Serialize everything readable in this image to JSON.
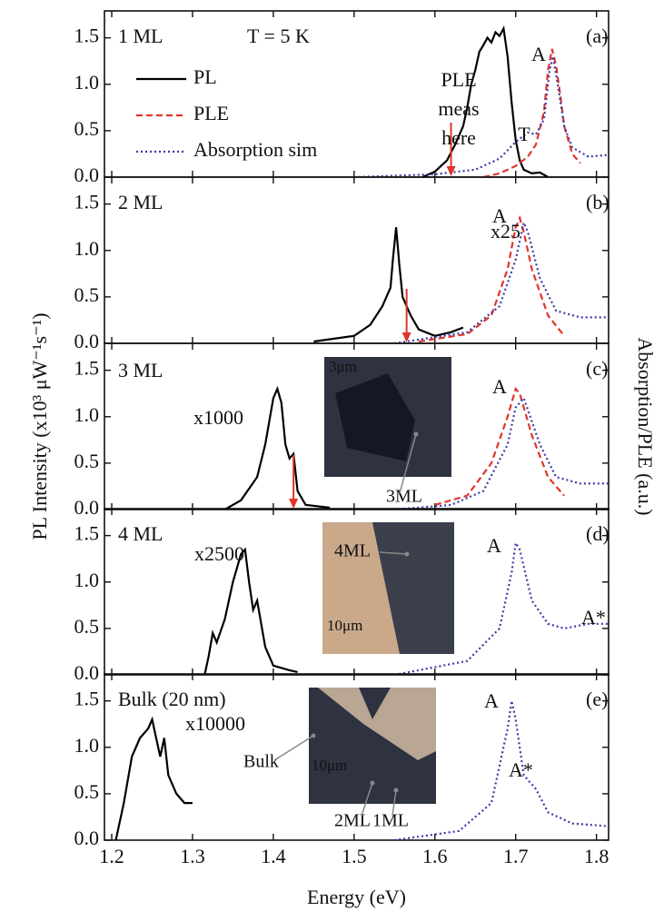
{
  "chart_data": [
    {
      "type": "line",
      "panel_label": "(a)",
      "xlim": [
        1.191,
        1.815
      ],
      "ylim": [
        0,
        1.79
      ],
      "xticks": [
        1.2,
        1.3,
        1.4,
        1.5,
        1.6,
        1.7,
        1.8
      ],
      "yticks": [
        {
          "value": 0,
          "label": "0.0"
        },
        {
          "value": 0.5,
          "label": "0.5"
        },
        {
          "value": 1,
          "label": "1.0"
        },
        {
          "value": 1.5,
          "label": "1.5"
        }
      ],
      "annotations": [
        "1 ML",
        "T = 5 K",
        "A",
        "T"
      ],
      "excitation_note": [
        "PLE",
        "meas",
        "here"
      ],
      "excitation_energy": 1.62,
      "series": [
        {
          "name": "PL",
          "color": "#000000",
          "style": "solid",
          "x": [
            1.585,
            1.6,
            1.615,
            1.625,
            1.635,
            1.64,
            1.645,
            1.65,
            1.655,
            1.66,
            1.665,
            1.67,
            1.675,
            1.68,
            1.685,
            1.69,
            1.695,
            1.7,
            1.705,
            1.71,
            1.72,
            1.73,
            1.74
          ],
          "values": [
            0,
            0.06,
            0.18,
            0.35,
            0.55,
            0.75,
            1.0,
            1.15,
            1.35,
            1.42,
            1.5,
            1.45,
            1.56,
            1.52,
            1.6,
            1.3,
            0.8,
            0.4,
            0.18,
            0.08,
            0.04,
            0.05,
            0
          ]
        },
        {
          "name": "PLE",
          "color": "#e0352b",
          "style": "dashed",
          "x": [
            1.66,
            1.68,
            1.7,
            1.715,
            1.725,
            1.735,
            1.74,
            1.745,
            1.75,
            1.755,
            1.76,
            1.77,
            1.78
          ],
          "values": [
            0.0,
            0.04,
            0.12,
            0.22,
            0.35,
            0.7,
            1.15,
            1.38,
            1.2,
            0.9,
            0.55,
            0.25,
            0.15
          ]
        },
        {
          "name": "Absorption sim",
          "color": "#3a3aa8",
          "style": "dotted",
          "x": [
            1.5,
            1.6,
            1.65,
            1.68,
            1.7,
            1.715,
            1.725,
            1.735,
            1.742,
            1.746,
            1.752,
            1.76,
            1.77,
            1.79,
            1.815
          ],
          "values": [
            0,
            0.03,
            0.08,
            0.2,
            0.38,
            0.48,
            0.46,
            0.62,
            1.15,
            1.3,
            1.0,
            0.55,
            0.32,
            0.22,
            0.24
          ]
        }
      ]
    },
    {
      "type": "line",
      "panel_label": "(b)",
      "xlim": [
        1.191,
        1.815
      ],
      "ylim": [
        0,
        1.79
      ],
      "xticks": [
        1.2,
        1.3,
        1.4,
        1.5,
        1.6,
        1.7,
        1.8
      ],
      "yticks": [
        {
          "value": 0,
          "label": "0.0"
        },
        {
          "value": 0.5,
          "label": "0.5"
        },
        {
          "value": 1,
          "label": "1.0"
        },
        {
          "value": 1.5,
          "label": "1.5"
        }
      ],
      "annotations": [
        "2 ML",
        "x25",
        "A"
      ],
      "excitation_energy": 1.565,
      "series": [
        {
          "color": "#000000",
          "style": "solid",
          "x": [
            1.45,
            1.5,
            1.52,
            1.535,
            1.54,
            1.545,
            1.548,
            1.552,
            1.556,
            1.56,
            1.57,
            1.58,
            1.6,
            1.62,
            1.635
          ],
          "values": [
            0.02,
            0.08,
            0.2,
            0.4,
            0.5,
            0.6,
            0.9,
            1.25,
            0.85,
            0.5,
            0.3,
            0.15,
            0.08,
            0.12,
            0.17
          ]
        },
        {
          "color": "#e0352b",
          "style": "dashed",
          "x": [
            1.58,
            1.64,
            1.67,
            1.69,
            1.7,
            1.705,
            1.71,
            1.72,
            1.74,
            1.76
          ],
          "values": [
            0.02,
            0.1,
            0.3,
            0.8,
            1.25,
            1.35,
            1.2,
            0.8,
            0.3,
            0.08
          ]
        },
        {
          "color": "#3a3aa8",
          "style": "dotted",
          "x": [
            1.55,
            1.64,
            1.68,
            1.7,
            1.71,
            1.715,
            1.73,
            1.75,
            1.78,
            1.815
          ],
          "values": [
            0,
            0.12,
            0.4,
            0.9,
            1.3,
            1.2,
            0.7,
            0.35,
            0.28,
            0.28
          ]
        }
      ]
    },
    {
      "type": "line",
      "panel_label": "(c)",
      "xlim": [
        1.191,
        1.815
      ],
      "ylim": [
        0,
        1.79
      ],
      "xticks": [
        1.2,
        1.3,
        1.4,
        1.5,
        1.6,
        1.7,
        1.8
      ],
      "yticks": [
        {
          "value": 0,
          "label": "0.0"
        },
        {
          "value": 0.5,
          "label": "0.5"
        },
        {
          "value": 1,
          "label": "1.0"
        },
        {
          "value": 1.5,
          "label": "1.5"
        }
      ],
      "ylabel": "PL Intensity (x10³ μW⁻¹s⁻¹)",
      "y2label": "Absorption/PLE (a.u.)",
      "annotations": [
        "3 ML",
        "x1000",
        "A"
      ],
      "inset_labels": [
        "3μm",
        "3ML"
      ],
      "excitation_energy": 1.425,
      "series": [
        {
          "color": "#000000",
          "style": "solid",
          "x": [
            1.34,
            1.36,
            1.38,
            1.39,
            1.4,
            1.405,
            1.41,
            1.415,
            1.42,
            1.425,
            1.43,
            1.44,
            1.47
          ],
          "values": [
            0,
            0.1,
            0.35,
            0.7,
            1.2,
            1.3,
            1.15,
            0.7,
            0.55,
            0.6,
            0.2,
            0.05,
            0.02
          ]
        },
        {
          "color": "#e0352b",
          "style": "dashed",
          "x": [
            1.6,
            1.64,
            1.67,
            1.69,
            1.7,
            1.705,
            1.72,
            1.74,
            1.76
          ],
          "values": [
            0.05,
            0.15,
            0.5,
            1.0,
            1.3,
            1.25,
            0.8,
            0.35,
            0.15
          ]
        },
        {
          "color": "#3a3aa8",
          "style": "dotted",
          "x": [
            1.55,
            1.62,
            1.66,
            1.69,
            1.7,
            1.71,
            1.73,
            1.75,
            1.78,
            1.815
          ],
          "values": [
            0,
            0.05,
            0.2,
            0.7,
            1.1,
            1.2,
            0.7,
            0.35,
            0.28,
            0.28
          ]
        }
      ]
    },
    {
      "type": "line",
      "panel_label": "(d)",
      "xlim": [
        1.191,
        1.815
      ],
      "ylim": [
        0,
        1.79
      ],
      "xticks": [
        1.2,
        1.3,
        1.4,
        1.5,
        1.6,
        1.7,
        1.8
      ],
      "yticks": [
        {
          "value": 0,
          "label": "0.0"
        },
        {
          "value": 0.5,
          "label": "0.5"
        },
        {
          "value": 1,
          "label": "1.0"
        },
        {
          "value": 1.5,
          "label": "1.5"
        }
      ],
      "annotations": [
        "4 ML",
        "x2500",
        "A",
        "A*"
      ],
      "inset_labels": [
        "4ML",
        "10μm"
      ],
      "series": [
        {
          "color": "#000000",
          "style": "solid",
          "x": [
            1.315,
            1.32,
            1.325,
            1.33,
            1.34,
            1.35,
            1.36,
            1.365,
            1.37,
            1.375,
            1.38,
            1.39,
            1.4,
            1.42,
            1.43
          ],
          "values": [
            0,
            0.2,
            0.45,
            0.35,
            0.6,
            1.0,
            1.3,
            1.35,
            1.0,
            0.7,
            0.8,
            0.3,
            0.1,
            0.05,
            0.03
          ]
        },
        {
          "color": "#3a3aa8",
          "style": "dotted",
          "x": [
            1.55,
            1.64,
            1.68,
            1.695,
            1.7,
            1.705,
            1.72,
            1.74,
            1.76,
            1.79,
            1.815
          ],
          "values": [
            0,
            0.15,
            0.5,
            1.1,
            1.42,
            1.35,
            0.8,
            0.55,
            0.5,
            0.55,
            0.55
          ]
        }
      ]
    },
    {
      "type": "line",
      "panel_label": "(e)",
      "xlim": [
        1.191,
        1.815
      ],
      "ylim": [
        0,
        1.79
      ],
      "xticks": [
        1.2,
        1.3,
        1.4,
        1.5,
        1.6,
        1.7,
        1.8
      ],
      "yticks": [
        {
          "value": 0,
          "label": "0.0"
        },
        {
          "value": 0.5,
          "label": "0.5"
        },
        {
          "value": 1,
          "label": "1.0"
        },
        {
          "value": 1.5,
          "label": "1.5"
        }
      ],
      "xlabel": "Energy (eV)",
      "annotations": [
        "Bulk (20 nm)",
        "x10000",
        "A",
        "A*"
      ],
      "inset_labels": [
        "Bulk",
        "10μm",
        "2ML",
        "1ML"
      ],
      "series": [
        {
          "color": "#000000",
          "style": "solid",
          "x": [
            1.205,
            1.215,
            1.225,
            1.235,
            1.245,
            1.25,
            1.255,
            1.26,
            1.265,
            1.27,
            1.28,
            1.29,
            1.3
          ],
          "values": [
            0,
            0.4,
            0.9,
            1.1,
            1.2,
            1.3,
            1.1,
            0.9,
            1.1,
            0.7,
            0.5,
            0.4,
            0.4
          ]
        },
        {
          "color": "#3a3aa8",
          "style": "dotted",
          "x": [
            1.55,
            1.63,
            1.67,
            1.69,
            1.695,
            1.7,
            1.71,
            1.725,
            1.74,
            1.77,
            1.815
          ],
          "values": [
            0,
            0.1,
            0.4,
            1.2,
            1.5,
            1.3,
            0.7,
            0.55,
            0.3,
            0.18,
            0.15
          ]
        }
      ]
    }
  ]
}
